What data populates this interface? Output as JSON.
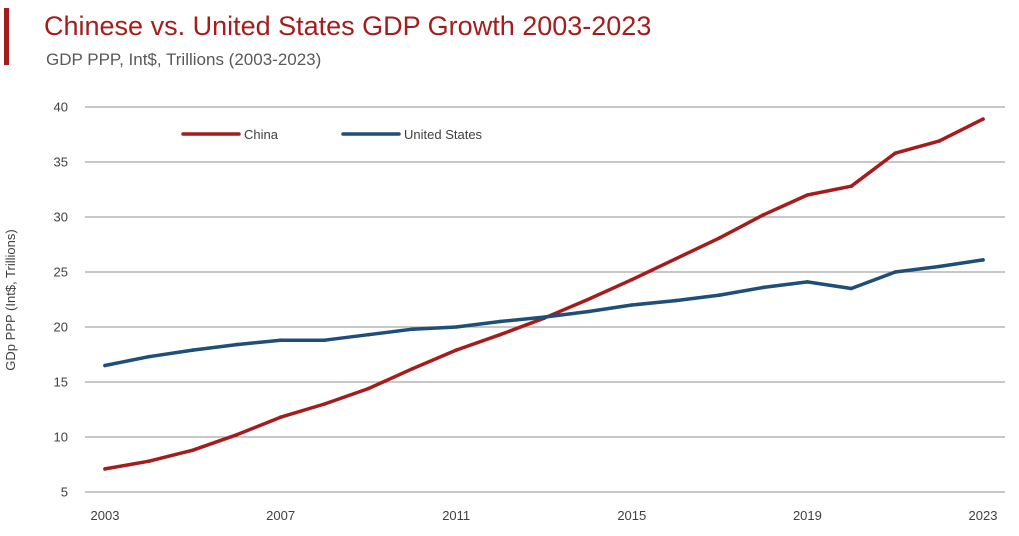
{
  "header": {
    "title": "Chinese vs. United States GDP Growth 2003-2023",
    "subtitle": "GDP PPP, Int$, Trillions (2003-2023)"
  },
  "colors": {
    "accent": "#a51c1c",
    "china": "#a51c1c",
    "united_states": "#1f4e79",
    "grid": "#a6a6a6"
  },
  "chart_data": {
    "type": "line",
    "title": "Chinese vs. United States GDP Growth 2003-2023",
    "subtitle": "GDP PPP, Int$, Trillions (2003-2023)",
    "xlabel": "",
    "ylabel": "GDp PPP (Int$, Trillions)",
    "x": [
      2003,
      2004,
      2005,
      2006,
      2007,
      2008,
      2009,
      2010,
      2011,
      2012,
      2013,
      2014,
      2015,
      2016,
      2017,
      2018,
      2019,
      2020,
      2021,
      2022,
      2023
    ],
    "xticks": [
      "2003",
      "2007",
      "2011",
      "2015",
      "2019",
      "2023"
    ],
    "xtick_values": [
      2003,
      2007,
      2011,
      2015,
      2019,
      2023
    ],
    "ylim": [
      5,
      40
    ],
    "yticks": [
      5,
      10,
      15,
      20,
      25,
      30,
      35,
      40
    ],
    "grid": true,
    "legend_position": "top-left",
    "series": [
      {
        "name": "China",
        "color": "#a51c1c",
        "values": [
          7.1,
          7.8,
          8.8,
          10.2,
          11.8,
          13.0,
          14.4,
          16.2,
          17.9,
          19.3,
          20.8,
          22.5,
          24.3,
          26.2,
          28.1,
          30.2,
          32.0,
          32.8,
          35.8,
          36.9,
          38.9
        ]
      },
      {
        "name": "United States",
        "color": "#1f4e79",
        "values": [
          16.5,
          17.3,
          17.9,
          18.4,
          18.8,
          18.8,
          19.3,
          19.8,
          20.0,
          20.5,
          20.9,
          21.4,
          22.0,
          22.4,
          22.9,
          23.6,
          24.1,
          23.5,
          25.0,
          25.5,
          26.1
        ]
      }
    ]
  }
}
